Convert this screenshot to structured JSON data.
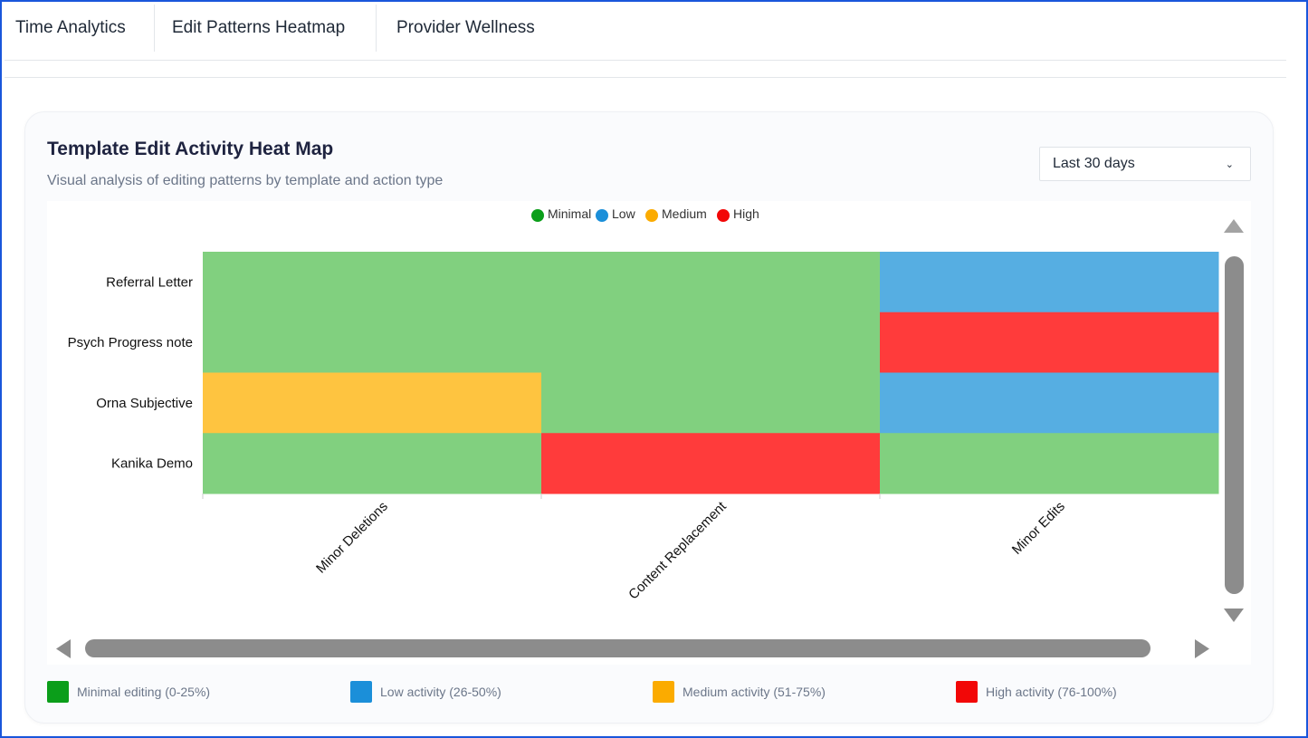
{
  "tabs": [
    {
      "label": "Time Analytics"
    },
    {
      "label": "Edit Patterns Heatmap"
    },
    {
      "label": "Provider Wellness"
    }
  ],
  "card": {
    "title": "Template Edit Activity Heat Map",
    "subtitle": "Visual analysis of editing patterns by template and action type",
    "range_select": {
      "value": "Last 30 days"
    }
  },
  "colors": {
    "minimal": "#81d07f",
    "low": "#56aee2",
    "medium": "#fec440",
    "high": "#ff3b3b",
    "legend_minimal": "#0b9e1a",
    "legend_low": "#1b8fd9",
    "legend_medium": "#fbab00",
    "legend_high": "#f20707"
  },
  "chart_data": {
    "type": "heatmap",
    "title": "",
    "xlabel": "",
    "ylabel": "",
    "legend": {
      "placement": "top-center",
      "entries": [
        "Minimal",
        "Low",
        "Medium",
        "High"
      ]
    },
    "x_categories": [
      "Minor Deletions",
      "Content Replacement",
      "Minor Edits"
    ],
    "y_categories": [
      "Referral Letter",
      "Psych Progress note",
      "Orna Subjective",
      "Kanika Demo"
    ],
    "cells": [
      [
        "Minimal",
        "Minimal",
        "Low"
      ],
      [
        "Minimal",
        "Minimal",
        "High"
      ],
      [
        "Medium",
        "Minimal",
        "Low"
      ],
      [
        "Minimal",
        "High",
        "Minimal"
      ]
    ]
  },
  "bottom_legend": [
    {
      "label": "Minimal editing (0-25%)",
      "key": "legend_minimal"
    },
    {
      "label": "Low activity (26-50%)",
      "key": "legend_low"
    },
    {
      "label": "Medium activity (51-75%)",
      "key": "legend_medium"
    },
    {
      "label": "High activity (76-100%)",
      "key": "legend_high"
    }
  ]
}
